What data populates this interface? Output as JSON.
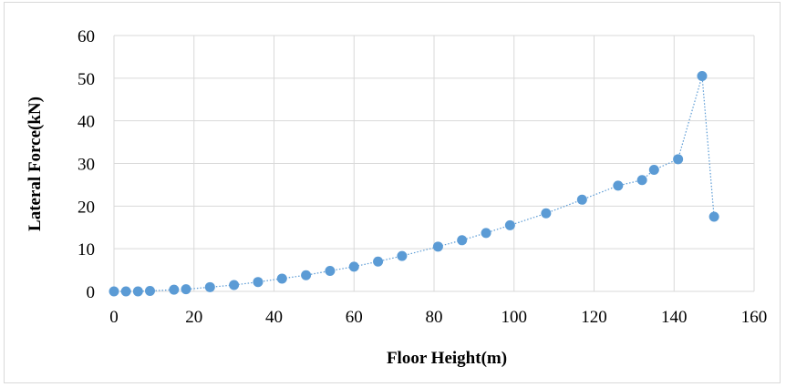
{
  "chart_data": {
    "type": "scatter",
    "title": "",
    "xlabel": "Floor Height(m)",
    "ylabel": "Lateral Force(kN)",
    "xlim": [
      0,
      160
    ],
    "ylim": [
      0,
      60
    ],
    "x_ticks": [
      0,
      20,
      40,
      60,
      80,
      100,
      120,
      140,
      160
    ],
    "y_ticks": [
      0,
      10,
      20,
      30,
      40,
      50,
      60
    ],
    "grid": true,
    "legend": "none",
    "marker_color": "#5b9bd5",
    "line_style": "dotted",
    "series": [
      {
        "x": [
          0,
          3,
          6,
          9,
          15,
          18,
          24,
          30,
          36,
          42,
          48,
          54,
          60,
          66,
          72,
          81,
          87,
          93,
          99,
          108,
          117,
          126,
          132,
          135,
          141,
          147,
          150
        ],
        "y": [
          0,
          0,
          0,
          0.1,
          0.4,
          0.5,
          1.0,
          1.5,
          2.2,
          3.0,
          3.8,
          4.8,
          5.8,
          7.0,
          8.3,
          10.5,
          12.0,
          13.7,
          15.5,
          18.3,
          21.5,
          24.8,
          26.1,
          28.5,
          31.0,
          50.5,
          17.5
        ]
      }
    ]
  }
}
